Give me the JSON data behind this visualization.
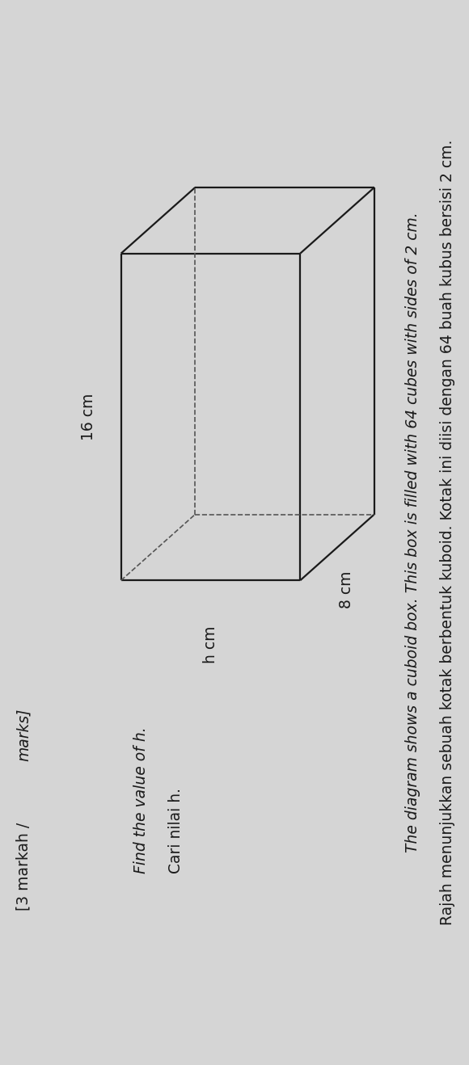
{
  "bg_color": "#d5d5d5",
  "title_malay": "Rajah menunjukkan sebuah kotak berbentuk kuboid. Kotak ini diisi dengan 64 buah kubus bersisi 2 cm.",
  "title_english": "The diagram shows a cuboid box. This box is filled with 64 cubes with sides of 2 cm.",
  "question_malay": "Cari nilai h.",
  "question_english": "Find the value of h.",
  "marks_roman": "[3 markah / ",
  "marks_italic": "marks]",
  "dim_16": "16 cm",
  "dim_8": "8 cm",
  "dim_h": "h cm",
  "line_color": "#1a1a1a",
  "dash_color": "#555555",
  "font_color": "#1a1a1a",
  "fontsize_title": 13.5,
  "fontsize_label": 13.5,
  "fontsize_marks": 13.5
}
